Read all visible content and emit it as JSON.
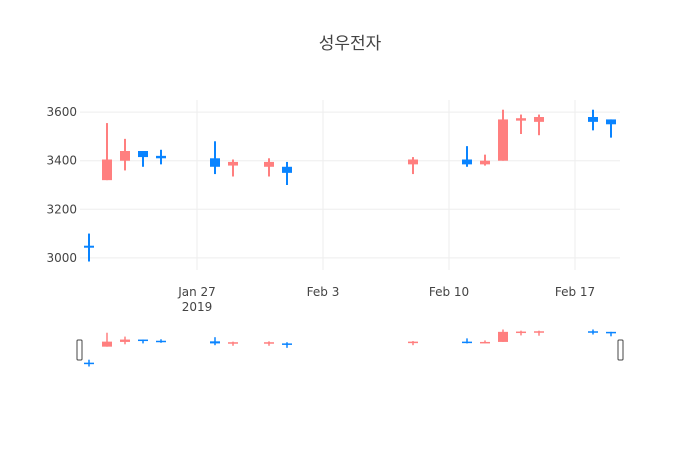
{
  "chart_data": {
    "type": "candlestick",
    "title": "성우전자",
    "x_ticks": [
      {
        "date": "2019-01-27",
        "label": "Jan 27",
        "sublabel": "2019"
      },
      {
        "date": "2019-02-03",
        "label": "Feb 3",
        "sublabel": ""
      },
      {
        "date": "2019-02-10",
        "label": "Feb 10",
        "sublabel": ""
      },
      {
        "date": "2019-02-17",
        "label": "Feb 17",
        "sublabel": ""
      }
    ],
    "y_ticks": [
      3000,
      3200,
      3400,
      3600
    ],
    "xlim": [
      "2019-01-21",
      "2019-02-19"
    ],
    "ylim": [
      2950,
      3650
    ],
    "grid": true,
    "rangeslider": true,
    "colors": {
      "increasing": "#ff7f7f",
      "decreasing": "#0a84ff",
      "grid": "#eeeeee",
      "text": "#444444"
    },
    "candles": [
      {
        "date": "2019-01-21",
        "open": 3050,
        "high": 3100,
        "low": 2985,
        "close": 3045
      },
      {
        "date": "2019-01-22",
        "open": 3320,
        "high": 3555,
        "low": 3320,
        "close": 3405
      },
      {
        "date": "2019-01-23",
        "open": 3400,
        "high": 3490,
        "low": 3360,
        "close": 3440
      },
      {
        "date": "2019-01-24",
        "open": 3440,
        "high": 3440,
        "low": 3375,
        "close": 3415
      },
      {
        "date": "2019-01-25",
        "open": 3420,
        "high": 3445,
        "low": 3385,
        "close": 3410
      },
      {
        "date": "2019-01-28",
        "open": 3410,
        "high": 3480,
        "low": 3345,
        "close": 3375
      },
      {
        "date": "2019-01-29",
        "open": 3380,
        "high": 3405,
        "low": 3335,
        "close": 3395
      },
      {
        "date": "2019-01-31",
        "open": 3375,
        "high": 3410,
        "low": 3335,
        "close": 3395
      },
      {
        "date": "2019-02-01",
        "open": 3375,
        "high": 3395,
        "low": 3300,
        "close": 3350
      },
      {
        "date": "2019-02-08",
        "open": 3385,
        "high": 3415,
        "low": 3345,
        "close": 3405
      },
      {
        "date": "2019-02-11",
        "open": 3405,
        "high": 3460,
        "low": 3375,
        "close": 3385
      },
      {
        "date": "2019-02-12",
        "open": 3385,
        "high": 3425,
        "low": 3380,
        "close": 3400
      },
      {
        "date": "2019-02-13",
        "open": 3400,
        "high": 3610,
        "low": 3400,
        "close": 3570
      },
      {
        "date": "2019-02-14",
        "open": 3565,
        "high": 3590,
        "low": 3510,
        "close": 3575
      },
      {
        "date": "2019-02-15",
        "open": 3560,
        "high": 3590,
        "low": 3505,
        "close": 3580
      },
      {
        "date": "2019-02-18",
        "open": 3580,
        "high": 3610,
        "low": 3525,
        "close": 3560
      },
      {
        "date": "2019-02-19",
        "open": 3570,
        "high": 3570,
        "low": 3495,
        "close": 3550
      }
    ]
  }
}
